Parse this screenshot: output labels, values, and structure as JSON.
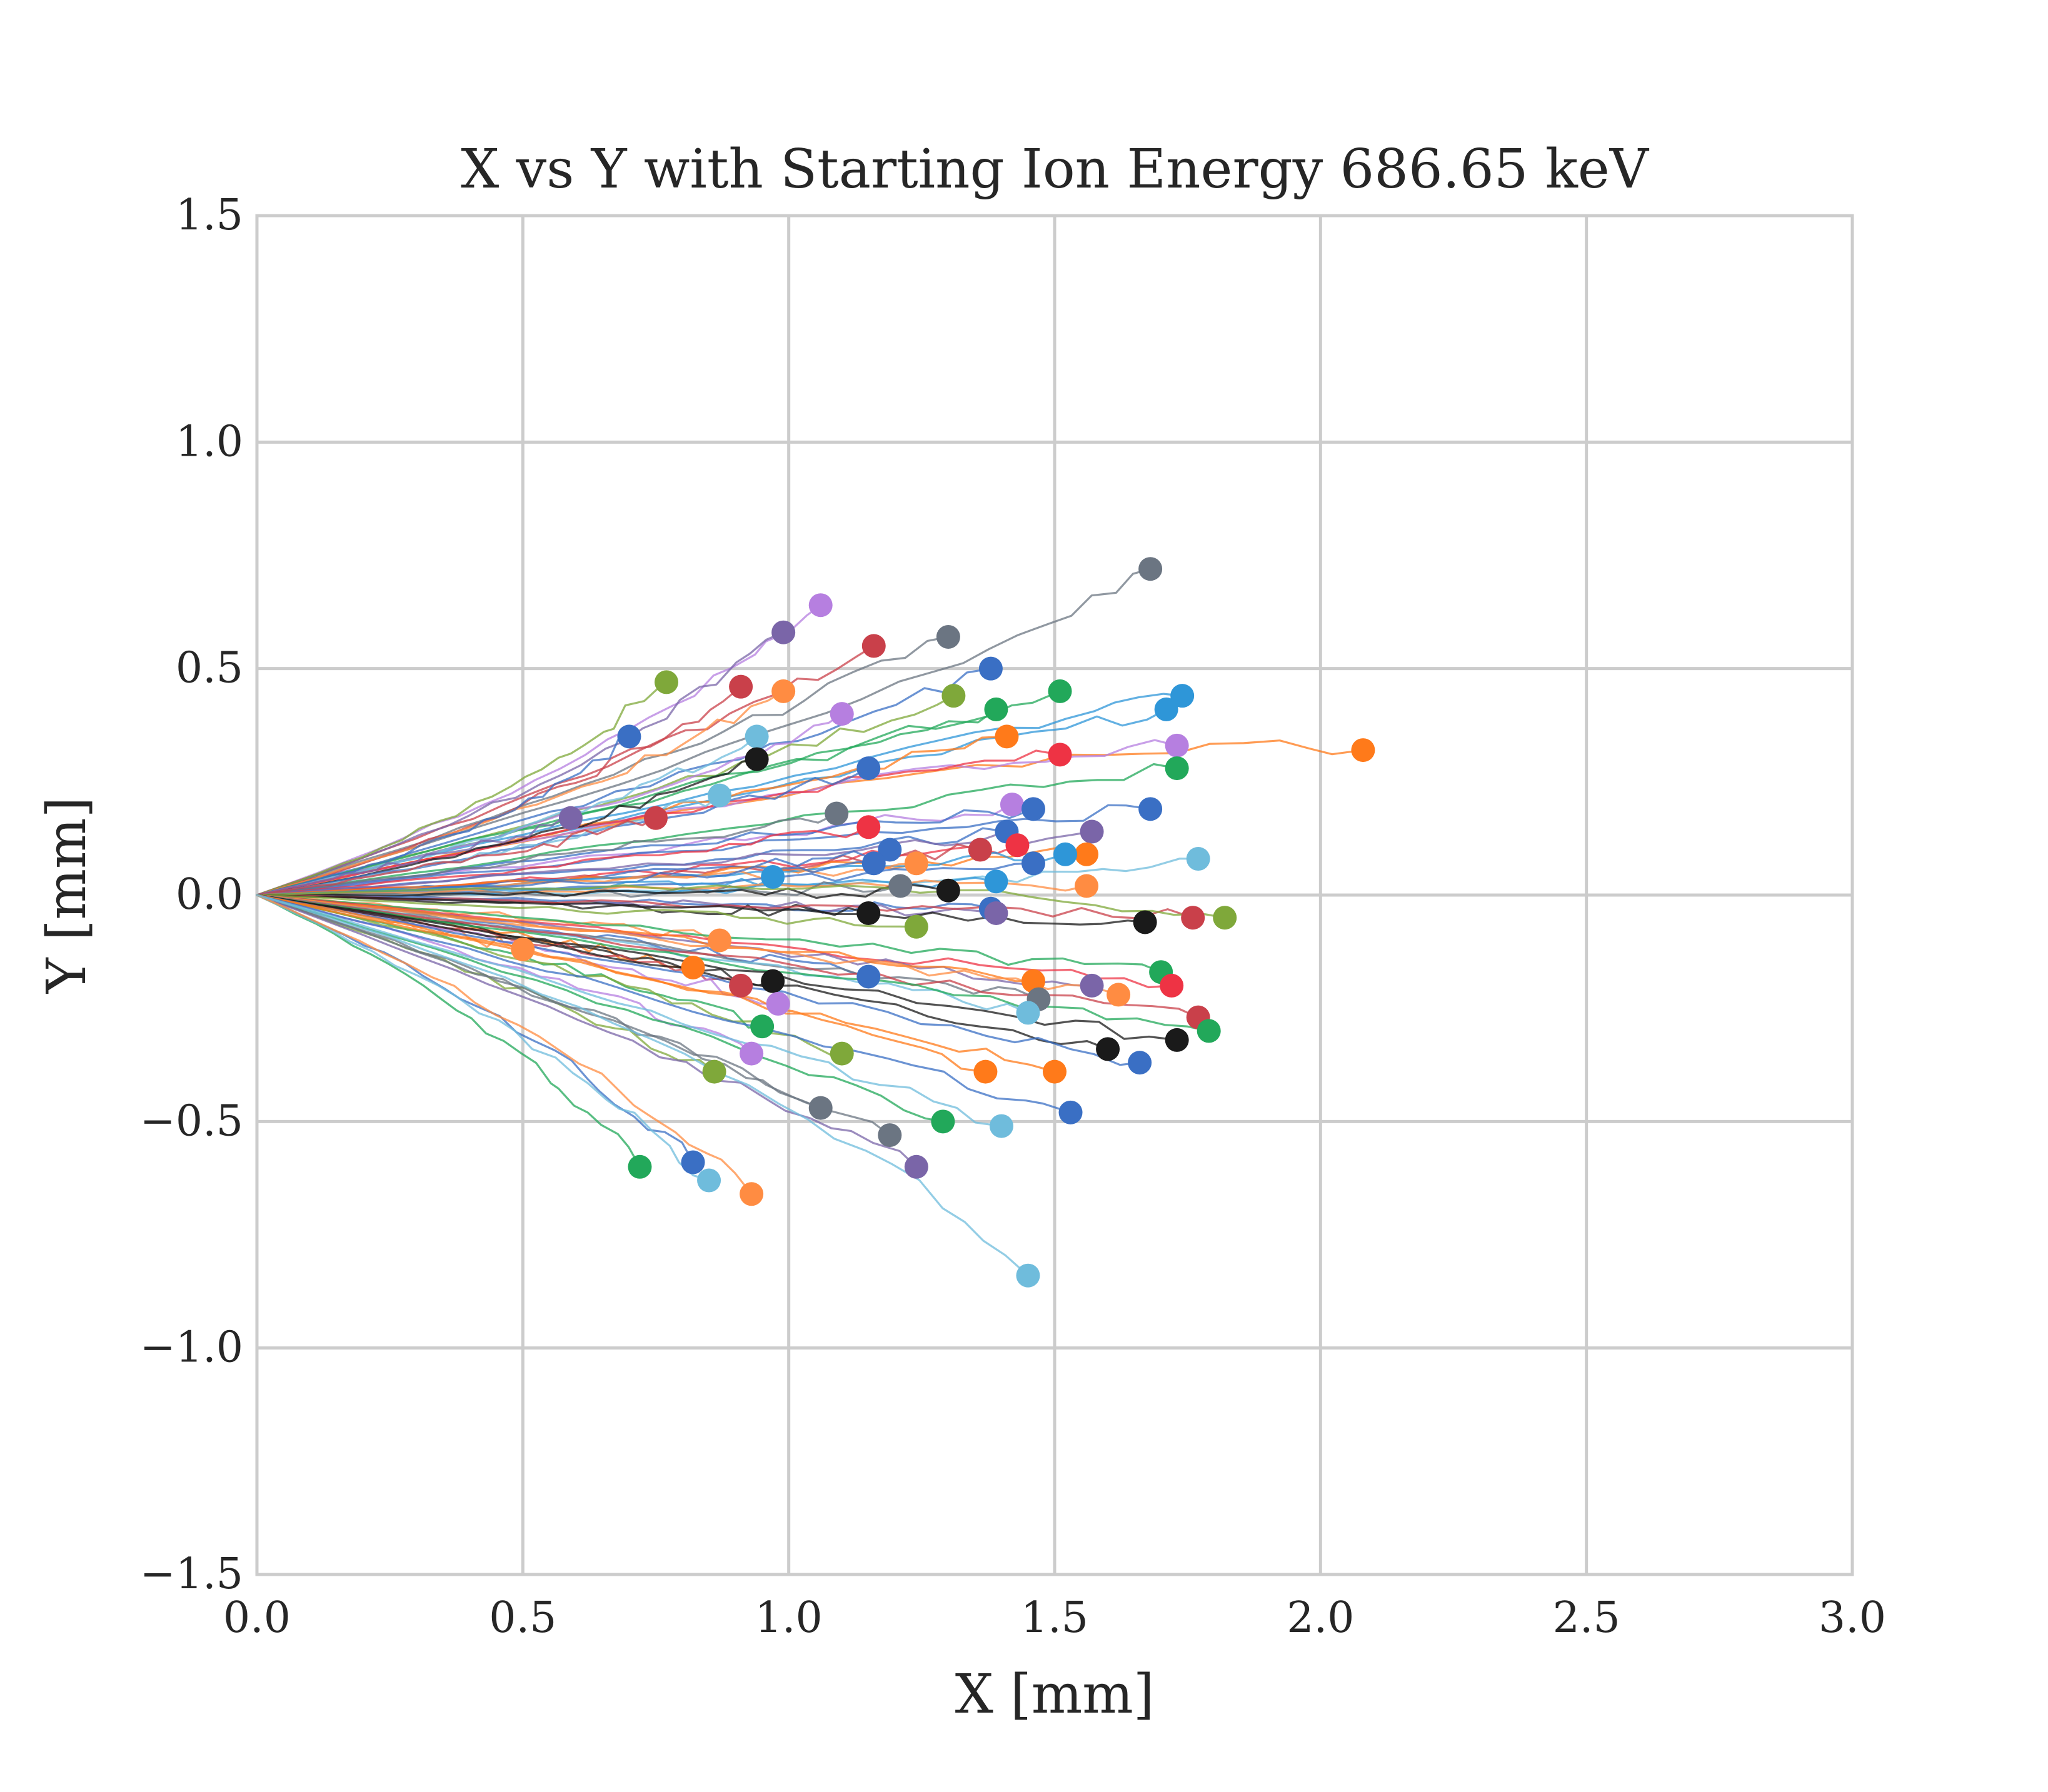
{
  "chart_data": {
    "type": "line",
    "title": "X vs Y with Starting Ion Energy 686.65 keV",
    "xlabel": "X [mm]",
    "ylabel": "Y [mm]",
    "xlim": [
      0.0,
      3.0
    ],
    "ylim": [
      -1.5,
      1.5
    ],
    "xticks": [
      0.0,
      0.5,
      1.0,
      1.5,
      2.0,
      2.5,
      3.0
    ],
    "xtick_labels": [
      "0.0",
      "0.5",
      "1.0",
      "1.5",
      "2.0",
      "2.5",
      "3.0"
    ],
    "yticks": [
      -1.5,
      -1.0,
      -0.5,
      0.0,
      0.5,
      1.0,
      1.5
    ],
    "ytick_labels": [
      "−1.5",
      "−1.0",
      "−0.5",
      "0.0",
      "0.5",
      "1.0",
      "1.5"
    ],
    "grid": true,
    "origin": [
      0.0,
      0.0
    ],
    "series": [
      {
        "color": "#6b7582",
        "end": [
          1.68,
          0.72
        ],
        "mid": [
          1.3,
          0.45
        ]
      },
      {
        "color": "#b67fe0",
        "end": [
          1.06,
          0.64
        ],
        "mid": [
          0.7,
          0.3
        ]
      },
      {
        "color": "#c9404a",
        "end": [
          1.16,
          0.55
        ],
        "mid": [
          0.75,
          0.3
        ]
      },
      {
        "color": "#7a65a8",
        "end": [
          0.99,
          0.58
        ],
        "mid": [
          0.65,
          0.25
        ]
      },
      {
        "color": "#6b7582",
        "end": [
          1.3,
          0.57
        ],
        "mid": [
          0.8,
          0.3
        ]
      },
      {
        "color": "#3a6fc4",
        "end": [
          1.38,
          0.5
        ],
        "mid": [
          0.9,
          0.28
        ]
      },
      {
        "color": "#7fa83a",
        "end": [
          0.77,
          0.47
        ],
        "mid": [
          0.5,
          0.2
        ]
      },
      {
        "color": "#c9404a",
        "end": [
          0.91,
          0.46
        ],
        "mid": [
          0.6,
          0.2
        ]
      },
      {
        "color": "#ff8c42",
        "end": [
          0.99,
          0.45
        ],
        "mid": [
          0.65,
          0.22
        ]
      },
      {
        "color": "#7fa83a",
        "end": [
          1.31,
          0.44
        ],
        "mid": [
          0.85,
          0.25
        ]
      },
      {
        "color": "#22a85a",
        "end": [
          1.51,
          0.45
        ],
        "mid": [
          1.0,
          0.3
        ]
      },
      {
        "color": "#2e96d8",
        "end": [
          1.74,
          0.44
        ],
        "mid": [
          1.3,
          0.35
        ]
      },
      {
        "color": "#2e96d8",
        "end": [
          1.71,
          0.41
        ],
        "mid": [
          1.2,
          0.3
        ]
      },
      {
        "color": "#22a85a",
        "end": [
          1.39,
          0.41
        ],
        "mid": [
          0.9,
          0.25
        ]
      },
      {
        "color": "#b67fe0",
        "end": [
          1.1,
          0.4
        ],
        "mid": [
          0.75,
          0.2
        ]
      },
      {
        "color": "#3a6fc4",
        "end": [
          0.7,
          0.35
        ],
        "mid": [
          0.45,
          0.12
        ]
      },
      {
        "color": "#6fbcdc",
        "end": [
          0.94,
          0.35
        ],
        "mid": [
          0.6,
          0.15
        ]
      },
      {
        "color": "#ff7a1a",
        "end": [
          1.41,
          0.35
        ],
        "mid": [
          0.9,
          0.22
        ]
      },
      {
        "color": "#ff7a1a",
        "end": [
          2.08,
          0.32
        ],
        "mid": [
          1.5,
          0.38
        ]
      },
      {
        "color": "#b67fe0",
        "end": [
          1.73,
          0.33
        ],
        "mid": [
          1.2,
          0.3
        ]
      },
      {
        "color": "#ee3344",
        "end": [
          1.51,
          0.31
        ],
        "mid": [
          1.0,
          0.25
        ]
      },
      {
        "color": "#1a1a1a",
        "end": [
          0.94,
          0.3
        ],
        "mid": [
          0.6,
          0.12
        ]
      },
      {
        "color": "#22a85a",
        "end": [
          1.73,
          0.28
        ],
        "mid": [
          1.2,
          0.2
        ]
      },
      {
        "color": "#3a6fc4",
        "end": [
          1.15,
          0.28
        ],
        "mid": [
          0.75,
          0.15
        ]
      },
      {
        "color": "#6fbcdc",
        "end": [
          0.87,
          0.22
        ],
        "mid": [
          0.55,
          0.1
        ]
      },
      {
        "color": "#b67fe0",
        "end": [
          1.42,
          0.2
        ],
        "mid": [
          0.9,
          0.12
        ]
      },
      {
        "color": "#3a6fc4",
        "end": [
          1.46,
          0.19
        ],
        "mid": [
          1.0,
          0.15
        ]
      },
      {
        "color": "#3a6fc4",
        "end": [
          1.68,
          0.19
        ],
        "mid": [
          1.2,
          0.15
        ]
      },
      {
        "color": "#6b7582",
        "end": [
          1.09,
          0.18
        ],
        "mid": [
          0.7,
          0.1
        ]
      },
      {
        "color": "#7a65a8",
        "end": [
          0.59,
          0.17
        ],
        "mid": [
          0.35,
          0.09
        ]
      },
      {
        "color": "#c9404a",
        "end": [
          0.75,
          0.17
        ],
        "mid": [
          0.45,
          0.08
        ]
      },
      {
        "color": "#ee3344",
        "end": [
          1.15,
          0.15
        ],
        "mid": [
          0.75,
          0.08
        ]
      },
      {
        "color": "#3a6fc4",
        "end": [
          1.41,
          0.14
        ],
        "mid": [
          0.9,
          0.08
        ]
      },
      {
        "color": "#7a65a8",
        "end": [
          1.57,
          0.14
        ],
        "mid": [
          1.1,
          0.1
        ]
      },
      {
        "color": "#ee3344",
        "end": [
          1.43,
          0.11
        ],
        "mid": [
          0.95,
          0.06
        ]
      },
      {
        "color": "#c9404a",
        "end": [
          1.36,
          0.1
        ],
        "mid": [
          0.9,
          0.05
        ]
      },
      {
        "color": "#3a6fc4",
        "end": [
          1.19,
          0.1
        ],
        "mid": [
          0.8,
          0.04
        ]
      },
      {
        "color": "#ff7a1a",
        "end": [
          1.56,
          0.09
        ],
        "mid": [
          1.0,
          0.06
        ]
      },
      {
        "color": "#2e96d8",
        "end": [
          1.52,
          0.09
        ],
        "mid": [
          1.0,
          0.05
        ]
      },
      {
        "color": "#6fbcdc",
        "end": [
          1.77,
          0.08
        ],
        "mid": [
          1.3,
          0.0
        ]
      },
      {
        "color": "#ff8c42",
        "end": [
          1.24,
          0.07
        ],
        "mid": [
          0.8,
          0.03
        ]
      },
      {
        "color": "#3a6fc4",
        "end": [
          1.16,
          0.07
        ],
        "mid": [
          0.75,
          0.03
        ]
      },
      {
        "color": "#3a6fc4",
        "end": [
          1.46,
          0.07
        ],
        "mid": [
          1.0,
          0.02
        ]
      },
      {
        "color": "#2e96d8",
        "end": [
          0.97,
          0.04
        ],
        "mid": [
          0.6,
          0.02
        ]
      },
      {
        "color": "#2e96d8",
        "end": [
          1.39,
          0.03
        ],
        "mid": [
          0.95,
          0.01
        ]
      },
      {
        "color": "#ff8c42",
        "end": [
          1.56,
          0.02
        ],
        "mid": [
          1.0,
          0.02
        ]
      },
      {
        "color": "#6b7582",
        "end": [
          1.21,
          0.02
        ],
        "mid": [
          0.8,
          0.0
        ]
      },
      {
        "color": "#1a1a1a",
        "end": [
          1.3,
          0.01
        ],
        "mid": [
          0.85,
          0.0
        ]
      },
      {
        "color": "#3a6fc4",
        "end": [
          1.38,
          -0.03
        ],
        "mid": [
          0.9,
          -0.02
        ]
      },
      {
        "color": "#7a65a8",
        "end": [
          1.39,
          -0.04
        ],
        "mid": [
          0.9,
          -0.02
        ]
      },
      {
        "color": "#1a1a1a",
        "end": [
          1.15,
          -0.04
        ],
        "mid": [
          0.75,
          -0.03
        ]
      },
      {
        "color": "#c9404a",
        "end": [
          1.76,
          -0.05
        ],
        "mid": [
          1.2,
          -0.03
        ]
      },
      {
        "color": "#7fa83a",
        "end": [
          1.82,
          -0.05
        ],
        "mid": [
          1.3,
          0.05
        ]
      },
      {
        "color": "#1a1a1a",
        "end": [
          1.67,
          -0.06
        ],
        "mid": [
          1.2,
          -0.04
        ]
      },
      {
        "color": "#7fa83a",
        "end": [
          1.24,
          -0.07
        ],
        "mid": [
          0.8,
          -0.04
        ]
      },
      {
        "color": "#ff8c42",
        "end": [
          0.87,
          -0.1
        ],
        "mid": [
          0.55,
          -0.05
        ]
      },
      {
        "color": "#ff8c42",
        "end": [
          0.5,
          -0.12
        ],
        "mid": [
          0.3,
          -0.06
        ]
      },
      {
        "color": "#ff7a1a",
        "end": [
          0.82,
          -0.16
        ],
        "mid": [
          0.5,
          -0.08
        ]
      },
      {
        "color": "#22a85a",
        "end": [
          1.7,
          -0.17
        ],
        "mid": [
          1.2,
          -0.12
        ]
      },
      {
        "color": "#3a6fc4",
        "end": [
          1.15,
          -0.18
        ],
        "mid": [
          0.75,
          -0.1
        ]
      },
      {
        "color": "#ee3344",
        "end": [
          1.72,
          -0.2
        ],
        "mid": [
          1.2,
          -0.14
        ]
      },
      {
        "color": "#1a1a1a",
        "end": [
          0.97,
          -0.19
        ],
        "mid": [
          0.6,
          -0.1
        ]
      },
      {
        "color": "#c9404a",
        "end": [
          0.91,
          -0.2
        ],
        "mid": [
          0.55,
          -0.1
        ]
      },
      {
        "color": "#7a65a8",
        "end": [
          1.57,
          -0.2
        ],
        "mid": [
          1.1,
          -0.14
        ]
      },
      {
        "color": "#ff7a1a",
        "end": [
          1.46,
          -0.19
        ],
        "mid": [
          1.0,
          -0.12
        ]
      },
      {
        "color": "#ff8c42",
        "end": [
          1.62,
          -0.22
        ],
        "mid": [
          1.1,
          -0.14
        ]
      },
      {
        "color": "#b67fe0",
        "end": [
          0.98,
          -0.24
        ],
        "mid": [
          0.6,
          -0.12
        ]
      },
      {
        "color": "#6b7582",
        "end": [
          1.47,
          -0.23
        ],
        "mid": [
          1.0,
          -0.15
        ]
      },
      {
        "color": "#6fbcdc",
        "end": [
          1.45,
          -0.26
        ],
        "mid": [
          1.0,
          -0.15
        ]
      },
      {
        "color": "#c9404a",
        "end": [
          1.77,
          -0.27
        ],
        "mid": [
          1.3,
          -0.2
        ]
      },
      {
        "color": "#22a85a",
        "end": [
          0.95,
          -0.29
        ],
        "mid": [
          0.6,
          -0.15
        ]
      },
      {
        "color": "#22a85a",
        "end": [
          1.79,
          -0.3
        ],
        "mid": [
          1.3,
          -0.22
        ]
      },
      {
        "color": "#1a1a1a",
        "end": [
          1.73,
          -0.32
        ],
        "mid": [
          1.2,
          -0.22
        ]
      },
      {
        "color": "#1a1a1a",
        "end": [
          1.6,
          -0.34
        ],
        "mid": [
          1.1,
          -0.22
        ]
      },
      {
        "color": "#7fa83a",
        "end": [
          1.1,
          -0.35
        ],
        "mid": [
          0.75,
          -0.2
        ]
      },
      {
        "color": "#b67fe0",
        "end": [
          0.93,
          -0.35
        ],
        "mid": [
          0.6,
          -0.18
        ]
      },
      {
        "color": "#3a6fc4",
        "end": [
          1.66,
          -0.37
        ],
        "mid": [
          1.15,
          -0.25
        ]
      },
      {
        "color": "#7fa83a",
        "end": [
          0.86,
          -0.39
        ],
        "mid": [
          0.5,
          -0.2
        ]
      },
      {
        "color": "#ff7a1a",
        "end": [
          1.37,
          -0.39
        ],
        "mid": [
          0.9,
          -0.2
        ]
      },
      {
        "color": "#ff7a1a",
        "end": [
          1.5,
          -0.39
        ],
        "mid": [
          1.0,
          -0.25
        ]
      },
      {
        "color": "#6b7582",
        "end": [
          1.06,
          -0.47
        ],
        "mid": [
          0.65,
          -0.25
        ]
      },
      {
        "color": "#3a6fc4",
        "end": [
          1.53,
          -0.48
        ],
        "mid": [
          1.0,
          -0.3
        ]
      },
      {
        "color": "#22a85a",
        "end": [
          1.29,
          -0.5
        ],
        "mid": [
          0.85,
          -0.3
        ]
      },
      {
        "color": "#6fbcdc",
        "end": [
          1.4,
          -0.51
        ],
        "mid": [
          0.9,
          -0.3
        ]
      },
      {
        "color": "#6b7582",
        "end": [
          1.19,
          -0.53
        ],
        "mid": [
          0.75,
          -0.3
        ]
      },
      {
        "color": "#3a6fc4",
        "end": [
          0.82,
          -0.59
        ],
        "mid": [
          0.5,
          -0.25
        ]
      },
      {
        "color": "#22a85a",
        "end": [
          0.72,
          -0.6
        ],
        "mid": [
          0.45,
          -0.25
        ]
      },
      {
        "color": "#7a65a8",
        "end": [
          1.24,
          -0.6
        ],
        "mid": [
          0.8,
          -0.35
        ]
      },
      {
        "color": "#6fbcdc",
        "end": [
          0.85,
          -0.63
        ],
        "mid": [
          0.55,
          -0.3
        ]
      },
      {
        "color": "#ff8c42",
        "end": [
          0.93,
          -0.66
        ],
        "mid": [
          0.6,
          -0.3
        ]
      },
      {
        "color": "#6fbcdc",
        "end": [
          1.45,
          -0.84
        ],
        "mid": [
          1.0,
          -0.35
        ]
      }
    ]
  }
}
